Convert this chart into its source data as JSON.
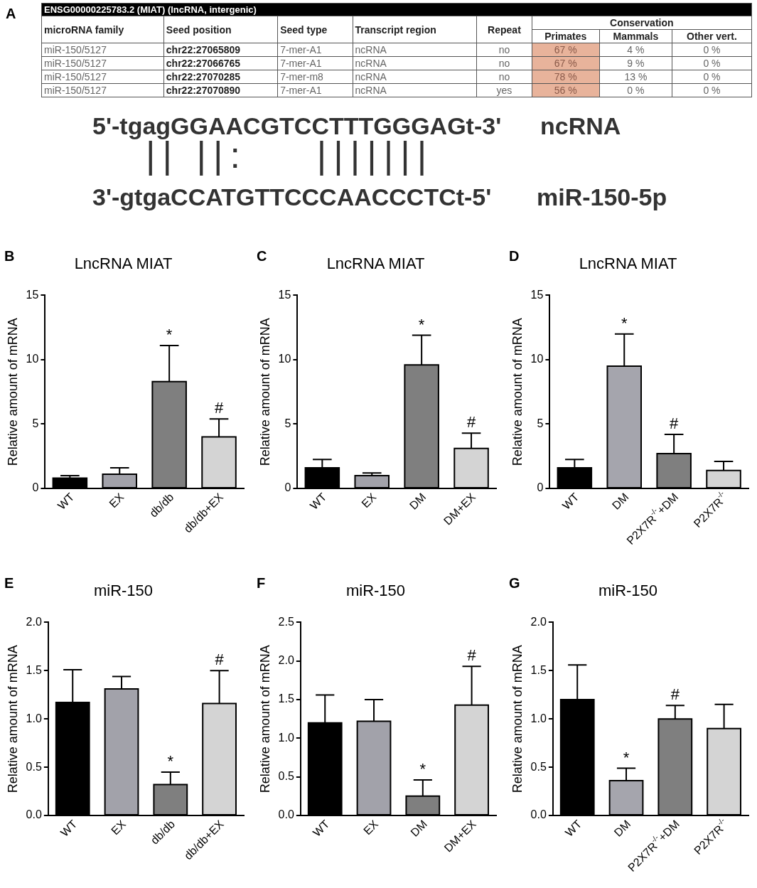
{
  "chart_data": [
    {
      "type": "other",
      "title": "ENSG00000225783.2 (MIAT) (lncRNA, intergenic)",
      "annotations": [
        "A",
        "microRNA family",
        "Seed position",
        "Seed type",
        "Transcript region",
        "Repeat",
        "Conservation",
        "Primates",
        "Mammals",
        "Other vert.",
        "miR-150/5127",
        "chr22:27065809",
        "7-mer-A1",
        "ncRNA",
        "no",
        "67 %",
        "4 %",
        "0 %",
        "miR-150/5127",
        "chr22:27066765",
        "7-mer-A1",
        "ncRNA",
        "no",
        "67 %",
        "9 %",
        "0 %",
        "miR-150/5127",
        "chr22:27070285",
        "7-mer-m8",
        "ncRNA",
        "no",
        "78 %",
        "13 %",
        "0 %",
        "miR-150/5127",
        "chr22:27070890",
        "7-mer-A1",
        "ncRNA",
        "yes",
        "56 %",
        "0 %",
        "0 %",
        "5'-tgagGGAACGTCCTTTGGGAGt-3'",
        "ncRNA",
        "|| ||:    |||||||",
        "3'-gtgaCCATGTTCCCAACCCTCt-5'",
        "miR-150-5p"
      ]
    },
    {
      "type": "bar",
      "title": "LncRNA MIAT",
      "ylabel": "Relative amount of mRNA",
      "categories": [
        "WT",
        "EX",
        "db/db",
        "db/db+EX"
      ],
      "values": [
        0.8,
        1.1,
        8.3,
        4.0
      ],
      "colors": [
        "#000000",
        "#a2a2aa",
        "#7f7f7f",
        "#d4d4d4"
      ],
      "errors": [
        [
          0.8,
          1.0
        ],
        [
          1.1,
          1.6
        ],
        [
          8.3,
          11.1
        ],
        [
          4.0,
          5.4
        ]
      ],
      "ylim": [
        0,
        15
      ],
      "yticks": [
        0,
        5,
        10,
        15
      ],
      "grid": false,
      "annotations": [
        "B",
        {
          "text": "*",
          "x": "db/db",
          "y": 11.1
        },
        {
          "text": "#",
          "x": "db/db+EX",
          "y": 5.4
        }
      ]
    },
    {
      "type": "bar",
      "title": "LncRNA MIAT",
      "ylabel": "Relative amount of mRNA",
      "categories": [
        "WT",
        "EX",
        "DM",
        "DM+EX"
      ],
      "values": [
        1.6,
        1.0,
        9.6,
        3.1
      ],
      "colors": [
        "#000000",
        "#a2a2aa",
        "#7f7f7f",
        "#d4d4d4"
      ],
      "errors": [
        [
          1.6,
          2.25
        ],
        [
          1.0,
          1.2
        ],
        [
          9.6,
          11.9
        ],
        [
          3.1,
          4.3
        ]
      ],
      "ylim": [
        0,
        15
      ],
      "yticks": [
        0,
        5,
        10,
        15
      ],
      "grid": false,
      "annotations": [
        "C",
        {
          "text": "*",
          "x": "DM",
          "y": 11.9
        },
        {
          "text": "#",
          "x": "DM+EX",
          "y": 4.3
        }
      ]
    },
    {
      "type": "bar",
      "title": "LncRNA MIAT",
      "ylabel": "Relative amount of mRNA",
      "categories": [
        "WT",
        "DM",
        "P2X7R$^{-/-}$+DM",
        "P2X7R$^{-/-}$"
      ],
      "values": [
        1.6,
        9.5,
        2.7,
        1.4
      ],
      "colors": [
        "#000000",
        "#a5a5ad",
        "#7f7f7f",
        "#d4d4d4"
      ],
      "errors": [
        [
          1.6,
          2.25
        ],
        [
          9.5,
          12.0
        ],
        [
          2.7,
          4.2
        ],
        [
          1.4,
          2.1
        ]
      ],
      "ylim": [
        0,
        15
      ],
      "yticks": [
        0,
        5,
        10,
        15
      ],
      "grid": false,
      "annotations": [
        "D",
        {
          "text": "*",
          "x": "DM",
          "y": 12.0
        },
        {
          "text": "#",
          "x": "P2X7R$^{-/-}$+DM",
          "y": 4.2
        }
      ]
    },
    {
      "type": "bar",
      "title": "miR-150",
      "ylabel": "Relative amount of mRNA",
      "categories": [
        "WT",
        "EX",
        "db/db",
        "db/db+EX"
      ],
      "values": [
        1.17,
        1.31,
        0.32,
        1.16
      ],
      "colors": [
        "#000000",
        "#a2a2aa",
        "#7f7f7f",
        "#d4d4d4"
      ],
      "errors": [
        [
          1.17,
          1.51
        ],
        [
          1.31,
          1.44
        ],
        [
          0.32,
          0.45
        ],
        [
          1.16,
          1.5
        ]
      ],
      "ylim": [
        0,
        2
      ],
      "yticks": [
        {
          "value": 0,
          "label": "0.0"
        },
        {
          "value": 0.5,
          "label": "0.5"
        },
        {
          "value": 1,
          "label": "1.0"
        },
        {
          "value": 1.5,
          "label": "1.5"
        },
        {
          "value": 2,
          "label": "2.0"
        }
      ],
      "grid": false,
      "annotations": [
        "E",
        {
          "text": "*",
          "x": "db/db",
          "y": 0.45
        },
        {
          "text": "#",
          "x": "db/db+EX",
          "y": 1.5
        }
      ]
    },
    {
      "type": "bar",
      "title": "miR-150",
      "ylabel": "Relative amount of mRNA",
      "categories": [
        "WT",
        "EX",
        "DM",
        "DM+EX"
      ],
      "values": [
        1.2,
        1.22,
        0.25,
        1.43
      ],
      "colors": [
        "#000000",
        "#a2a2aa",
        "#7f7f7f",
        "#d4d4d4"
      ],
      "errors": [
        [
          1.2,
          1.56
        ],
        [
          1.22,
          1.5
        ],
        [
          0.25,
          0.46
        ],
        [
          1.43,
          1.93
        ]
      ],
      "ylim": [
        0,
        2.5
      ],
      "yticks": [
        {
          "value": 0,
          "label": "0.0"
        },
        {
          "value": 0.5,
          "label": "0.5"
        },
        {
          "value": 1,
          "label": "1.0"
        },
        {
          "value": 1.5,
          "label": "1.5"
        },
        {
          "value": 2,
          "label": "2.0"
        },
        {
          "value": 2.5,
          "label": "2.5"
        }
      ],
      "grid": false,
      "annotations": [
        "F",
        {
          "text": "*",
          "x": "DM",
          "y": 0.46
        },
        {
          "text": "#",
          "x": "DM+EX",
          "y": 1.93
        }
      ]
    },
    {
      "type": "bar",
      "title": "miR-150",
      "ylabel": "Relative amount of mRNA",
      "categories": [
        "WT",
        "DM",
        "P2X7R$^{-/-}$+DM",
        "P2X7R$^{-/-}$"
      ],
      "values": [
        1.2,
        0.36,
        1.0,
        0.9
      ],
      "colors": [
        "#000000",
        "#a5a5ad",
        "#7f7f7f",
        "#d4d4d4"
      ],
      "errors": [
        [
          1.2,
          1.56
        ],
        [
          0.36,
          0.49
        ],
        [
          1.0,
          1.14
        ],
        [
          0.9,
          1.15
        ]
      ],
      "ylim": [
        0,
        2
      ],
      "yticks": [
        {
          "value": 0,
          "label": "0.0"
        },
        {
          "value": 0.5,
          "label": "0.5"
        },
        {
          "value": 1,
          "label": "1.0"
        },
        {
          "value": 1.5,
          "label": "1.5"
        },
        {
          "value": 2,
          "label": "2.0"
        }
      ],
      "grid": false,
      "annotations": [
        "G",
        {
          "text": "*",
          "x": "DM",
          "y": 0.49
        },
        {
          "text": "#",
          "x": "P2X7R$^{-/-}$+DM",
          "y": 1.14
        }
      ]
    }
  ]
}
